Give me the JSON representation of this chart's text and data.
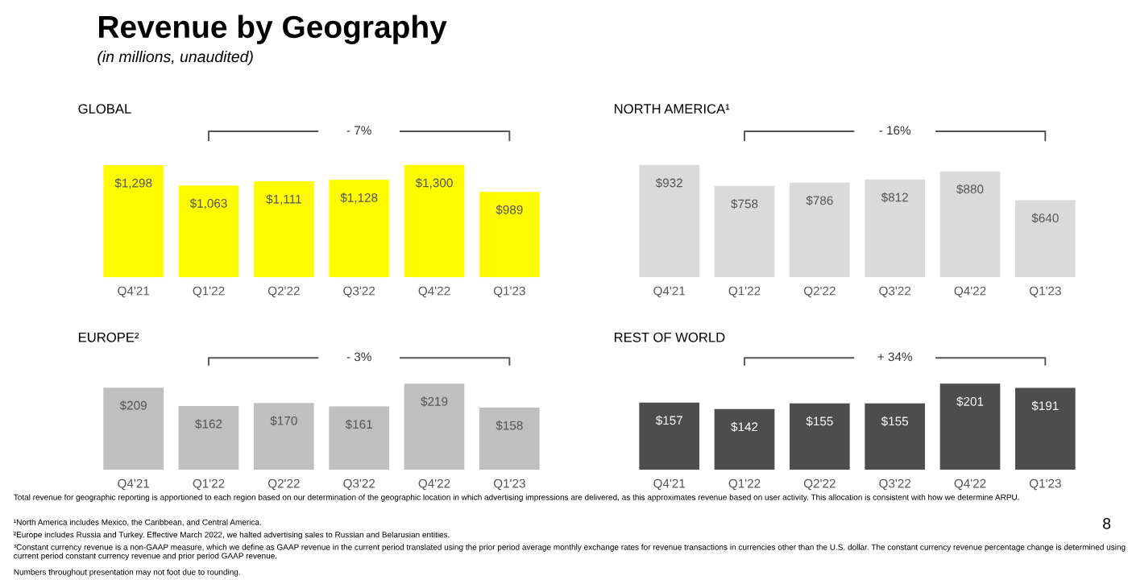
{
  "chart_data": [
    {
      "type": "other",
      "title": "Revenue by Geography",
      "subtitle": "(in millions, unaudited)",
      "annotations": [
        "Total revenue for geographic reporting is apportioned to each region based on our determination of the geographic location in which advertising impressions are delivered, as this approximates revenue based on user activity. This allocation is consistent with how we determine ARPU.",
        "¹North America includes Mexico, the Caribbean, and Central America.",
        "²Europe includes Russia and Turkey. Effective March 2022, we halted advertising sales to Russian and Belarusian entities.",
        "³Constant currency revenue is a non-GAAP measure, which we define as GAAP revenue in the current period translated using the prior period average monthly exchange rates for revenue transactions in currencies other than the U.S. dollar. The constant currency revenue percentage change is determined using current period constant currency revenue and prior period GAAP revenue.",
        "Numbers throughout presentation may not foot due to rounding.",
        "8"
      ]
    },
    {
      "type": "bar",
      "title": "GLOBAL",
      "categories": [
        "Q4'21",
        "Q1'22",
        "Q2'22",
        "Q3'22",
        "Q4'22",
        "Q1'23"
      ],
      "values": [
        1298,
        1063,
        1111,
        1128,
        1300,
        989
      ],
      "value_labels": [
        "$1,298",
        "$1,063",
        "$1,111",
        "$1,128",
        "$1,300",
        "$989"
      ],
      "color": "#fffc00",
      "annotations": [
        "- 7%"
      ]
    },
    {
      "type": "bar",
      "title": "NORTH AMERICA¹",
      "categories": [
        "Q4'21",
        "Q1'22",
        "Q2'22",
        "Q3'22",
        "Q4'22",
        "Q1'23"
      ],
      "values": [
        932,
        758,
        786,
        812,
        880,
        640
      ],
      "value_labels": [
        "$932",
        "$758",
        "$786",
        "$812",
        "$880",
        "$640"
      ],
      "color": "#dadada",
      "annotations": [
        "- 16%"
      ]
    },
    {
      "type": "bar",
      "title": "EUROPE²",
      "categories": [
        "Q4'21",
        "Q1'22",
        "Q2'22",
        "Q3'22",
        "Q4'22",
        "Q1'23"
      ],
      "values": [
        209,
        162,
        170,
        161,
        219,
        158
      ],
      "value_labels": [
        "$209",
        "$162",
        "$170",
        "$161",
        "$219",
        "$158"
      ],
      "color": "#bfbfbf",
      "annotations": [
        "- 3%"
      ]
    },
    {
      "type": "bar",
      "title": "REST OF WORLD",
      "categories": [
        "Q4'21",
        "Q1'22",
        "Q2'22",
        "Q3'22",
        "Q4'22",
        "Q1'23"
      ],
      "values": [
        157,
        142,
        155,
        155,
        201,
        191
      ],
      "value_labels": [
        "$157",
        "$142",
        "$155",
        "$155",
        "$201",
        "$191"
      ],
      "color": "#4d4d4d",
      "annotations": [
        "+ 34%"
      ]
    }
  ]
}
